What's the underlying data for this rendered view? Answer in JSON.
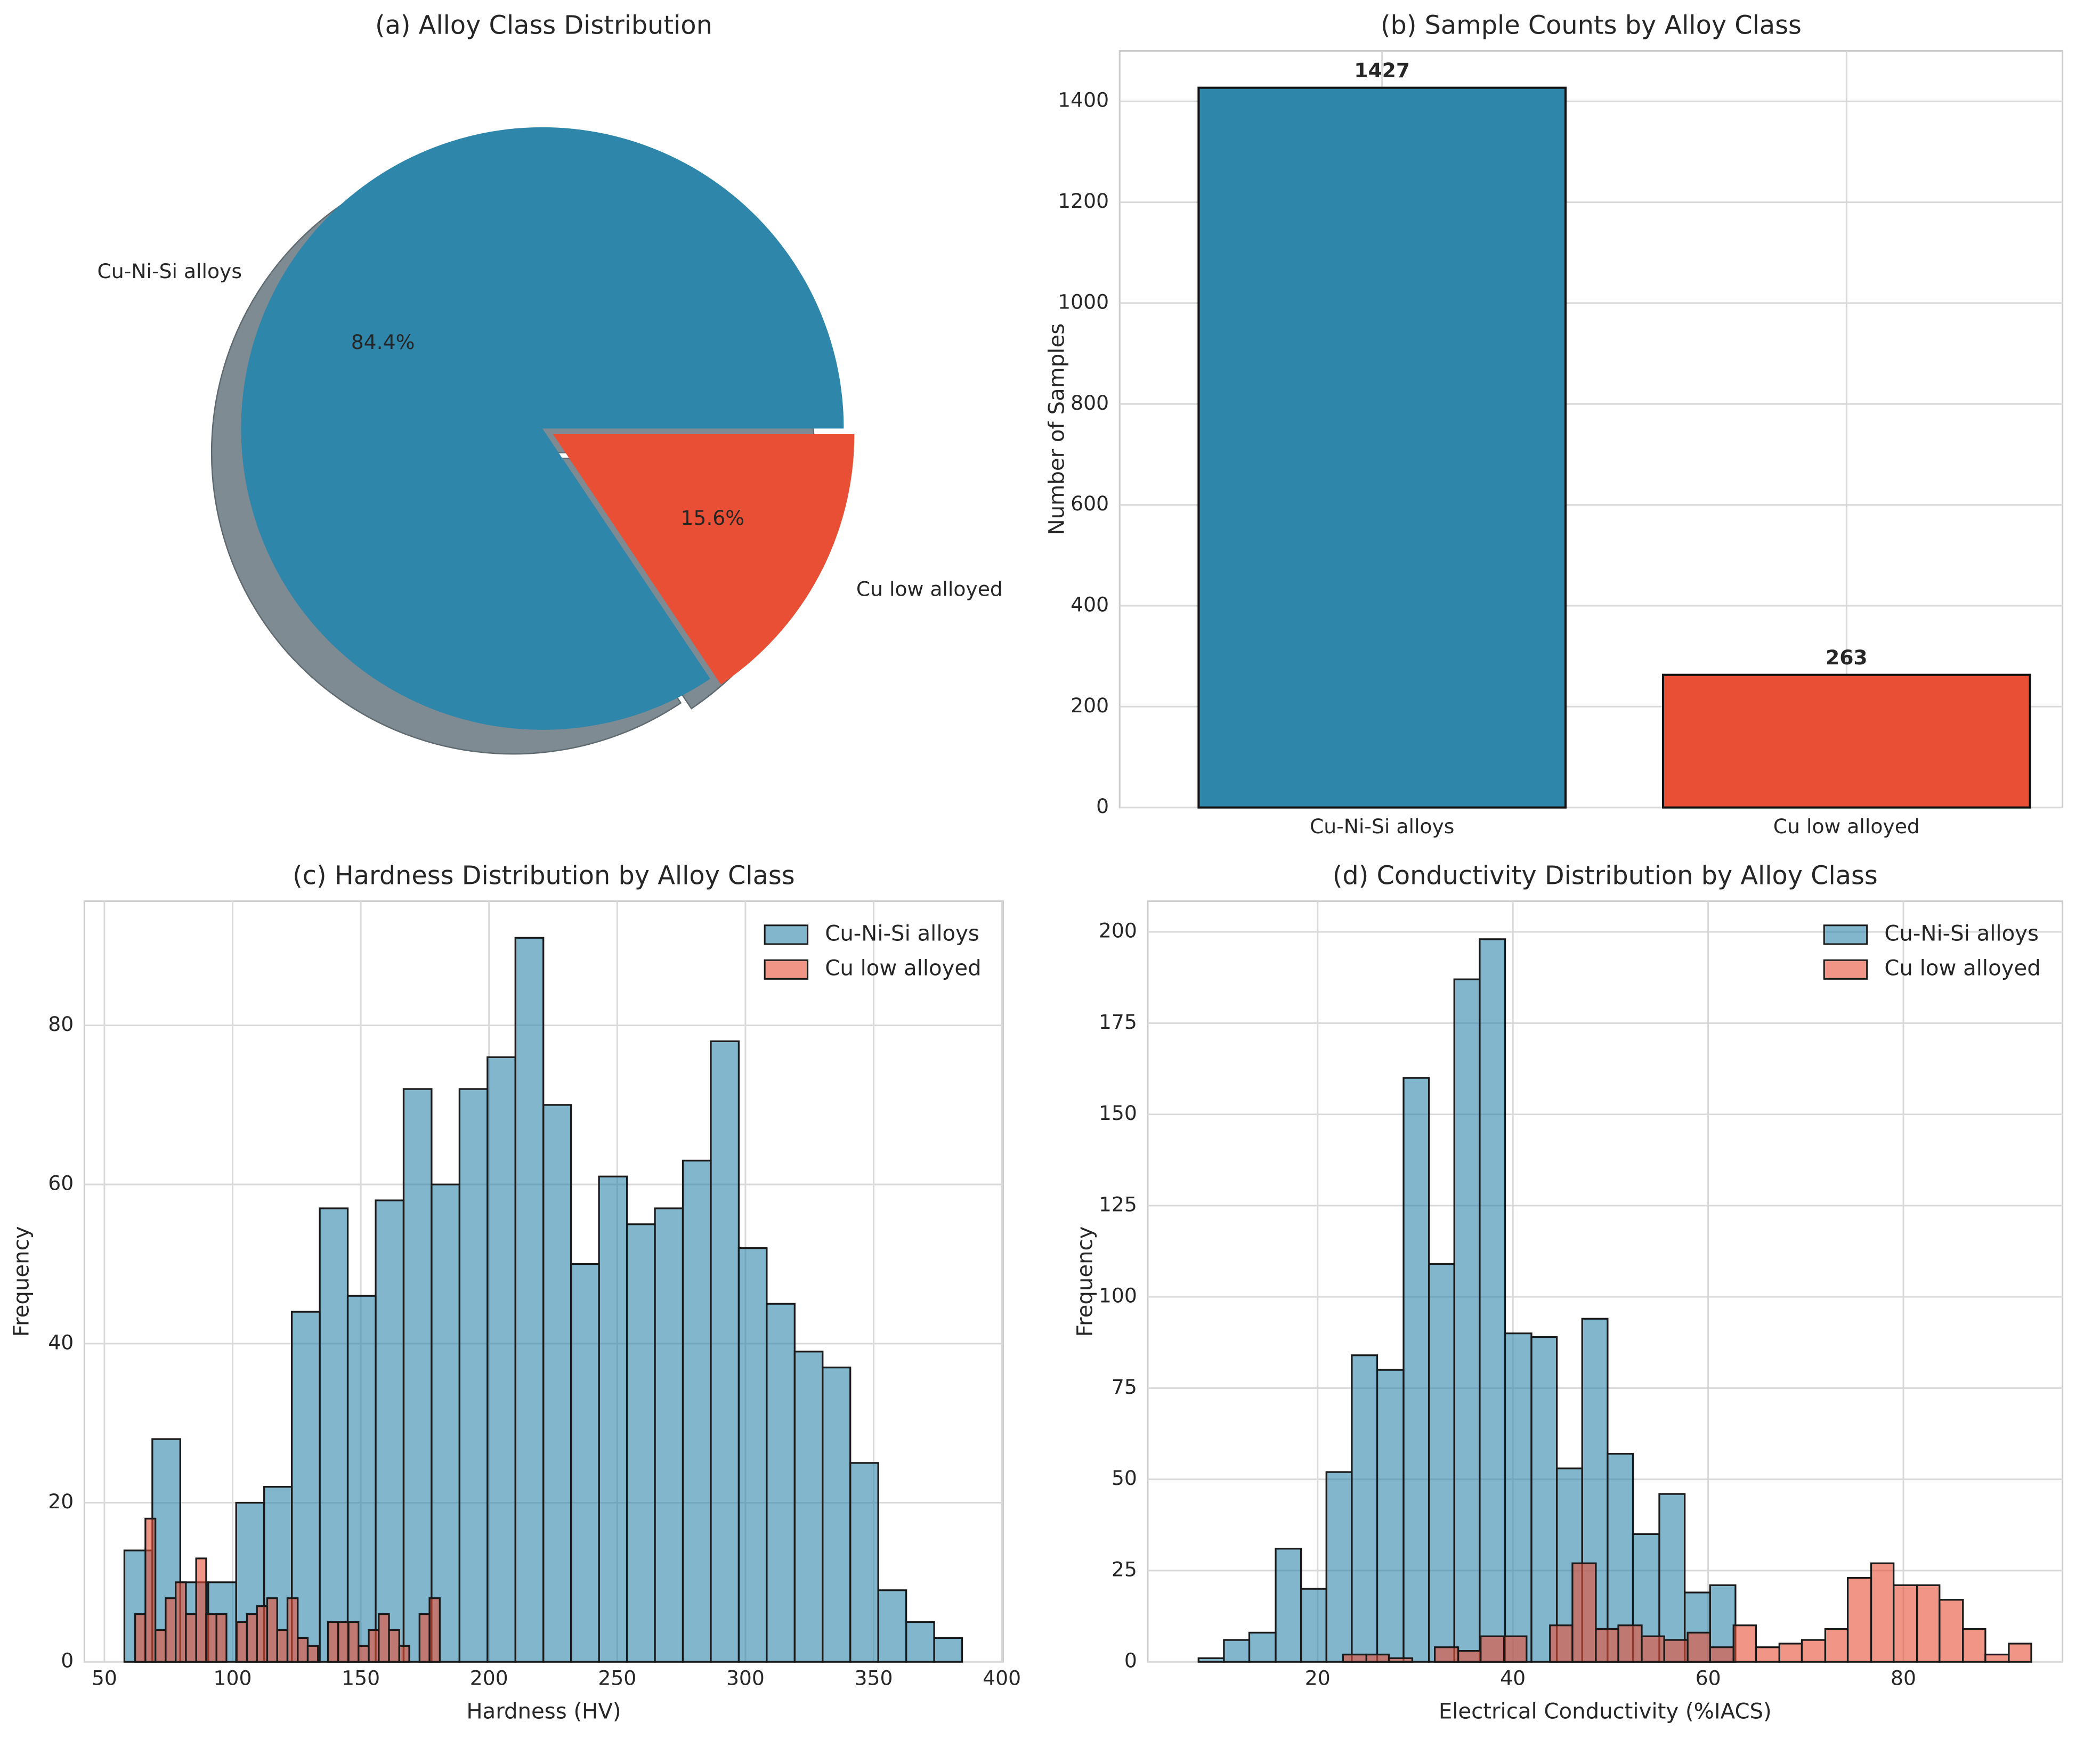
{
  "chart_data": [
    {
      "type": "pie",
      "title": "(a) Alloy Class Distribution",
      "categories": [
        "Cu-Ni-Si alloys",
        "Cu low alloyed"
      ],
      "values": [
        84.4,
        15.6
      ],
      "value_labels": [
        "84.4%",
        "15.6%"
      ],
      "colors": [
        "#2e86ab",
        "#e84f35"
      ],
      "shadow": true
    },
    {
      "type": "bar",
      "title": "(b) Sample Counts by Alloy Class",
      "ylabel": "Number of Samples",
      "categories": [
        "Cu-Ni-Si alloys",
        "Cu low alloyed"
      ],
      "values": [
        1427,
        263
      ],
      "colors": [
        "#2e86ab",
        "#e84f35"
      ],
      "ylim": [
        0,
        1500
      ],
      "yticks": [
        0,
        200,
        400,
        600,
        800,
        1000,
        1200,
        1400
      ],
      "grid": true
    },
    {
      "type": "histogram",
      "title": "(c) Hardness Distribution by Alloy Class",
      "xlabel": "Hardness (HV)",
      "ylabel": "Frequency",
      "series": [
        {
          "name": "Cu-Ni-Si alloys",
          "color": "#2e86ab",
          "bins": [
            57.8,
            68.7,
            79.6,
            90.5,
            101.4,
            112.3,
            123.1,
            134.0,
            144.9,
            155.8,
            166.7,
            177.6,
            188.5,
            199.4,
            210.3,
            221.2,
            232.0,
            242.9,
            253.8,
            264.7,
            275.6,
            286.5,
            297.4,
            308.3,
            319.2,
            330.1,
            340.9,
            351.8,
            362.7,
            373.6,
            384.5
          ],
          "values": [
            14,
            28,
            10,
            10,
            20,
            22,
            44,
            57,
            46,
            58,
            72,
            60,
            72,
            76,
            91,
            70,
            50,
            61,
            55,
            57,
            63,
            78,
            52,
            45,
            39,
            37,
            25,
            9,
            5,
            3
          ]
        },
        {
          "name": "Cu low alloyed",
          "color": "#e84f35",
          "bins": [
            62.0,
            66.0,
            69.9,
            73.9,
            77.8,
            81.8,
            85.8,
            89.7,
            93.7,
            97.6,
            101.6,
            105.6,
            109.5,
            113.5,
            117.4,
            121.4,
            125.4,
            129.3,
            133.3,
            137.2,
            141.2,
            145.2,
            149.1,
            153.1,
            157.0,
            161.0,
            165.0,
            168.9,
            172.9,
            176.8,
            180.8
          ],
          "values": [
            6,
            18,
            4,
            8,
            10,
            6,
            13,
            6,
            6,
            0,
            5,
            6,
            7,
            8,
            4,
            8,
            3,
            2,
            0,
            5,
            5,
            5,
            2,
            4,
            6,
            4,
            2,
            0,
            6,
            8
          ]
        }
      ],
      "xlim": [
        42.2,
        400.5
      ],
      "ylim": [
        0,
        95.6
      ],
      "xticks": [
        50,
        100,
        150,
        200,
        250,
        300,
        350,
        400
      ],
      "yticks": [
        0,
        20,
        40,
        60,
        80
      ],
      "legend": "upper right",
      "grid": true
    },
    {
      "type": "histogram",
      "title": "(d) Conductivity Distribution by Alloy Class",
      "xlabel": "Electrical Conductivity (%IACS)",
      "ylabel": "Frequency",
      "series": [
        {
          "name": "Cu-Ni-Si alloys",
          "color": "#2e86ab",
          "bins": [
            7.8,
            10.4,
            13.0,
            15.7,
            18.3,
            20.9,
            23.5,
            26.1,
            28.8,
            31.4,
            34.0,
            36.6,
            39.2,
            41.9,
            44.5,
            47.1,
            49.7,
            52.3,
            55.0,
            57.6,
            60.2,
            62.8
          ],
          "values": [
            1,
            6,
            8,
            31,
            20,
            52,
            84,
            80,
            160,
            109,
            187,
            198,
            90,
            89,
            53,
            94,
            57,
            35,
            46,
            19,
            21
          ]
        },
        {
          "name": "Cu low alloyed",
          "color": "#e84f35",
          "bins": [
            22.6,
            25.0,
            27.3,
            29.7,
            32.0,
            34.4,
            36.7,
            39.1,
            41.4,
            43.8,
            46.1,
            48.5,
            50.8,
            53.2,
            55.5,
            57.9,
            60.2,
            62.6,
            64.9,
            67.3,
            69.6,
            72.0,
            74.3,
            76.7,
            79.0,
            81.4,
            83.7,
            86.1,
            88.4,
            90.8,
            93.1
          ],
          "values": [
            2,
            2,
            1,
            0,
            4,
            3,
            7,
            7,
            0,
            10,
            27,
            9,
            10,
            7,
            6,
            8,
            4,
            10,
            4,
            5,
            6,
            9,
            23,
            27,
            21,
            21,
            17,
            9,
            2,
            5
          ]
        }
      ],
      "xlim": [
        2.6,
        96.3
      ],
      "ylim": [
        0,
        208.4
      ],
      "xticks": [
        20,
        40,
        60,
        80
      ],
      "yticks": [
        0,
        25,
        50,
        75,
        100,
        125,
        150,
        175,
        200
      ],
      "legend": "upper right",
      "grid": true
    }
  ]
}
